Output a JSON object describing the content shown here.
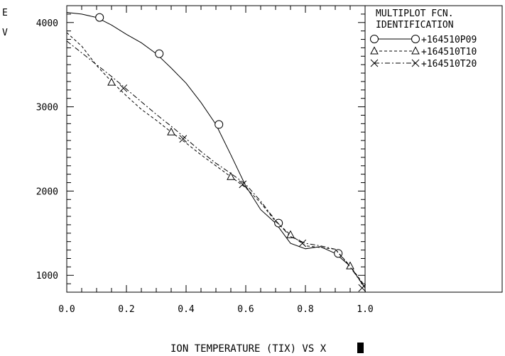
{
  "chart_data": {
    "type": "line",
    "title": "",
    "xlabel": "ION TEMPERATURE (TIX) VS X",
    "ylabel": "E\nV",
    "xlim": [
      0.0,
      1.0
    ],
    "ylim": [
      800,
      4200
    ],
    "x_ticks": [
      0.0,
      0.2,
      0.4,
      0.6,
      0.8,
      1.0
    ],
    "x_tick_labels": [
      "0.0",
      "0.2",
      "0.4",
      "0.6",
      "0.8",
      "1.0"
    ],
    "y_ticks": [
      1000,
      2000,
      3000,
      4000
    ],
    "y_tick_labels": [
      "1000",
      "2000",
      "3000",
      "4000"
    ],
    "grid": false,
    "legend": {
      "position": "right",
      "title_line1": "MULTIPLOT FCN.",
      "title_line2": "IDENTIFICATION",
      "entries": [
        "+164510P09",
        "+164510T10",
        "+164510T20"
      ]
    },
    "series": [
      {
        "name": "+164510P09",
        "line_style": "solid",
        "marker": "circle",
        "x": [
          0.0,
          0.05,
          0.1,
          0.15,
          0.2,
          0.25,
          0.3,
          0.35,
          0.4,
          0.45,
          0.5,
          0.55,
          0.6,
          0.65,
          0.7,
          0.75,
          0.8,
          0.85,
          0.9,
          0.95,
          1.0
        ],
        "y": [
          4120,
          4100,
          4060,
          3970,
          3860,
          3760,
          3630,
          3460,
          3280,
          3050,
          2790,
          2430,
          2060,
          1780,
          1620,
          1380,
          1315,
          1340,
          1260,
          1110,
          850
        ],
        "marker_x": [
          0.11,
          0.31,
          0.51,
          0.71,
          0.91
        ],
        "marker_y": [
          4060,
          3630,
          2790,
          1620,
          1260
        ]
      },
      {
        "name": "+164510T10",
        "line_style": "dashed",
        "marker": "triangle",
        "x": [
          0.0,
          0.05,
          0.1,
          0.15,
          0.2,
          0.25,
          0.3,
          0.35,
          0.4,
          0.45,
          0.5,
          0.55,
          0.6,
          0.65,
          0.7,
          0.75,
          0.8,
          0.85,
          0.9,
          0.95,
          1.0
        ],
        "y": [
          3880,
          3720,
          3490,
          3300,
          3130,
          2970,
          2840,
          2700,
          2570,
          2430,
          2300,
          2170,
          2040,
          1860,
          1640,
          1480,
          1350,
          1330,
          1310,
          1110,
          870
        ],
        "marker_x": [
          0.15,
          0.35,
          0.55,
          0.75,
          0.95
        ],
        "marker_y": [
          3290,
          2700,
          2170,
          1480,
          1110
        ]
      },
      {
        "name": "+164510T20",
        "line_style": "dash-dot",
        "marker": "cross",
        "x": [
          0.0,
          0.05,
          0.1,
          0.15,
          0.2,
          0.25,
          0.3,
          0.35,
          0.4,
          0.45,
          0.5,
          0.55,
          0.6,
          0.65,
          0.7,
          0.75,
          0.8,
          0.85,
          0.9,
          0.95,
          1.0
        ],
        "y": [
          3780,
          3640,
          3500,
          3360,
          3210,
          3060,
          2910,
          2770,
          2620,
          2470,
          2330,
          2210,
          2080,
          1880,
          1650,
          1460,
          1380,
          1350,
          1310,
          1100,
          850
        ],
        "marker_x": [
          0.19,
          0.39,
          0.59,
          0.79,
          0.99
        ],
        "marker_y": [
          3220,
          2620,
          2080,
          1380,
          850
        ]
      }
    ]
  }
}
